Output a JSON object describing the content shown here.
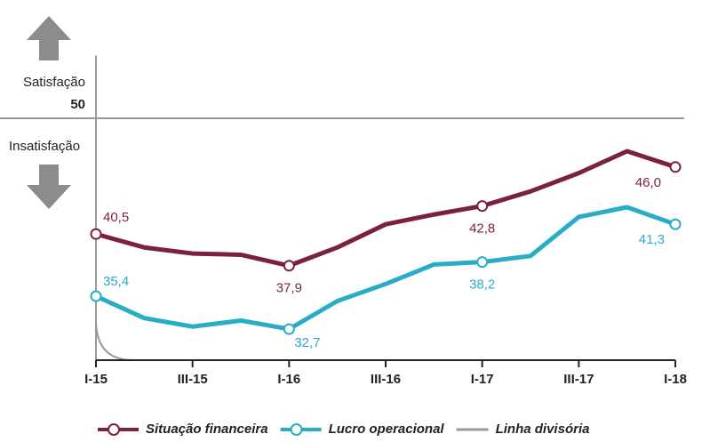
{
  "chart_data": {
    "type": "line",
    "categories": [
      "I-15",
      null,
      "III-15",
      null,
      "I-16",
      null,
      "III-16",
      null,
      "I-17",
      null,
      "III-17",
      null,
      "I-18"
    ],
    "series": [
      {
        "name": "Situação financeira",
        "color": "#7b1f45",
        "values": [
          40.5,
          39.4,
          38.9,
          38.8,
          37.9,
          39.4,
          41.3,
          42.1,
          42.8,
          44.0,
          45.5,
          47.3,
          46.0
        ],
        "value_labels": [
          "40,5",
          null,
          null,
          null,
          "37,9",
          null,
          null,
          null,
          "42,8",
          null,
          null,
          null,
          "46,0"
        ]
      },
      {
        "name": "Lucro operacional",
        "color": "#29adc4",
        "values": [
          35.4,
          33.6,
          32.9,
          33.4,
          32.7,
          35.0,
          36.4,
          38.0,
          38.2,
          38.7,
          41.9,
          42.7,
          41.3
        ],
        "value_labels": [
          "35,4",
          null,
          null,
          null,
          "32,7",
          null,
          null,
          null,
          "38,2",
          null,
          null,
          null,
          "41,3"
        ]
      }
    ],
    "divider": {
      "name": "Linha divisória",
      "value": 50,
      "color": "#999999"
    },
    "annotations": [
      "Satisfação",
      "Insatisfação"
    ],
    "ylim": [
      30,
      55
    ]
  }
}
